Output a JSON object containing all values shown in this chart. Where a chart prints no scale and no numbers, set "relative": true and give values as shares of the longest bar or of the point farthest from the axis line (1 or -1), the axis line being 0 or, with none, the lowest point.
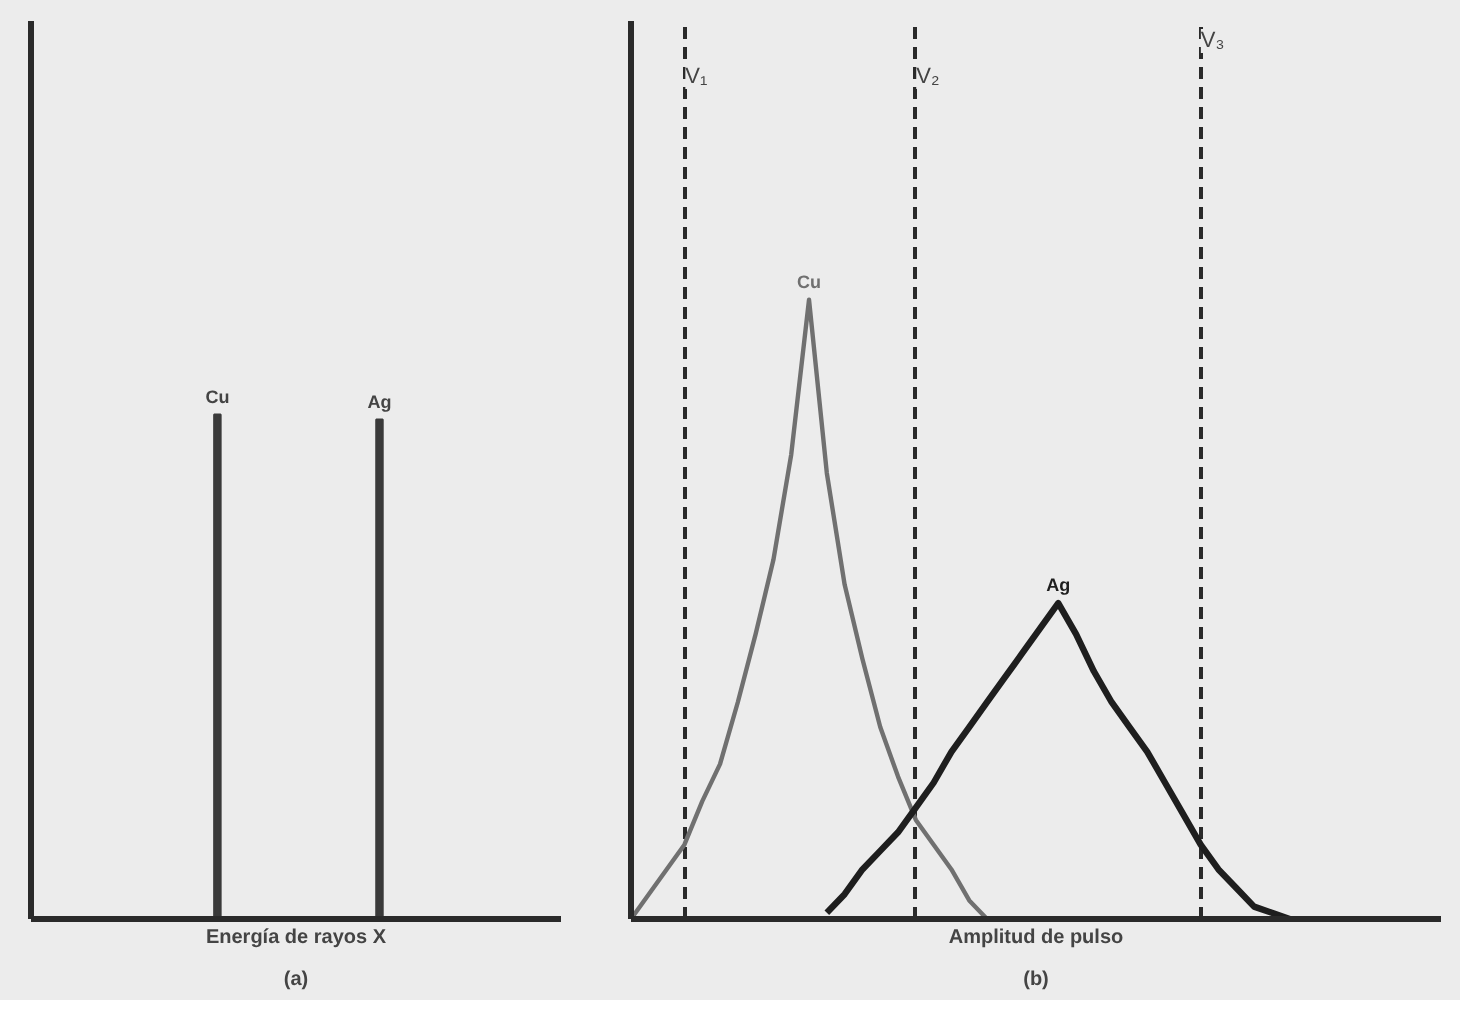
{
  "chart_data": [
    {
      "type": "bar",
      "relative": true,
      "xlabel": "Energía de rayos X",
      "annotations": [
        "(a)"
      ],
      "categories": [
        "Cu",
        "Ag"
      ],
      "color": "#3a3a3a",
      "values": [
        1,
        0.99
      ]
    },
    {
      "type": "line",
      "relative": true,
      "xlabel": "Amplitud de pulso",
      "annotations": [
        "(b)",
        "V₁",
        "V₂",
        "V₃"
      ],
      "grid": "x",
      "categories": [
        null,
        null,
        null,
        null,
        null,
        null,
        null,
        null,
        null,
        null,
        null,
        null,
        null,
        null,
        null,
        null,
        null,
        null,
        null,
        null,
        null,
        null,
        null,
        null,
        null,
        null,
        null,
        null,
        null,
        null,
        null,
        null,
        null,
        null,
        null,
        null,
        null,
        null,
        null,
        null,
        null,
        null,
        null,
        null,
        null,
        null
      ],
      "series": [
        {
          "name": "Cu",
          "color": "#707070",
          "values": [
            0,
            0.04,
            0.08,
            0.12,
            0.19,
            0.25,
            0.35,
            0.46,
            0.58,
            0.75,
            1,
            0.72,
            0.54,
            0.42,
            0.31,
            0.23,
            0.16,
            0.12,
            0.08,
            0.03,
            0,
            null,
            null,
            null,
            null,
            null,
            null,
            null,
            null,
            null,
            null,
            null,
            null,
            null,
            null,
            null,
            null,
            null,
            null,
            null,
            null,
            null,
            null,
            null,
            null,
            null
          ]
        },
        {
          "name": "Ag",
          "color": "#1e1e1e",
          "values": [
            null,
            null,
            null,
            null,
            null,
            null,
            null,
            null,
            null,
            null,
            null,
            0.01,
            0.04,
            0.08,
            0.11,
            0.14,
            0.18,
            0.22,
            0.27,
            0.31,
            0.35,
            0.39,
            0.43,
            0.47,
            0.51,
            0.46,
            0.4,
            0.35,
            0.31,
            0.27,
            0.22,
            0.17,
            0.12,
            0.08,
            0.05,
            0.02,
            0.01,
            0,
            null,
            null,
            null,
            null,
            null,
            null,
            null,
            null
          ]
        }
      ]
    }
  ]
}
